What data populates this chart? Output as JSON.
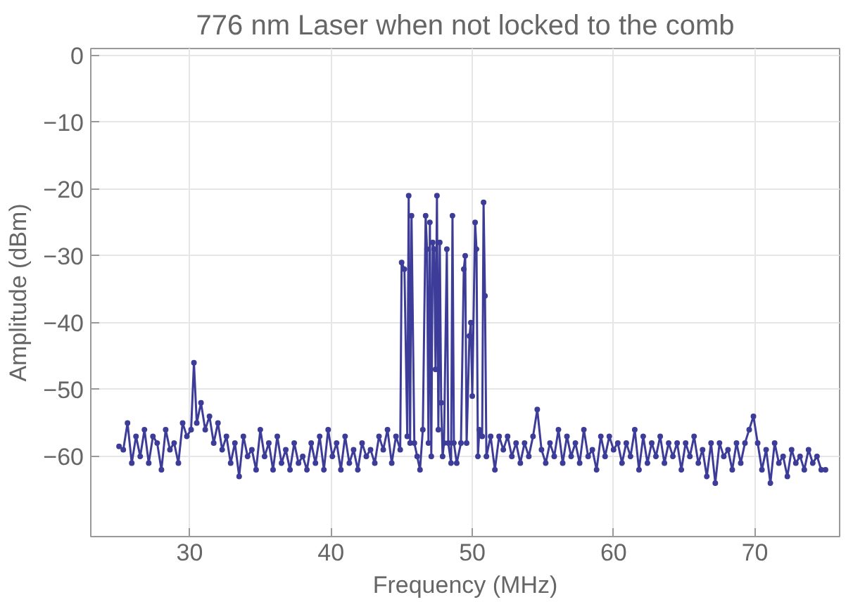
{
  "chart_data": {
    "type": "line",
    "title": "776 nm Laser when not locked to the comb",
    "xlabel": "Frequency (MHz)",
    "ylabel": "Amplitude (dBm)",
    "xlim": [
      23,
      76
    ],
    "ylim": [
      -72,
      1
    ],
    "xticks": [
      30,
      40,
      50,
      60,
      70
    ],
    "yticks": [
      0,
      {
        "value": -10,
        "label": "−10"
      },
      {
        "value": -20,
        "label": "−20"
      },
      {
        "value": -30,
        "label": "−30"
      },
      {
        "value": -40,
        "label": "−40"
      },
      {
        "value": -50,
        "label": "−50"
      },
      {
        "value": -60,
        "label": "−60"
      }
    ],
    "grid": true,
    "marker": "circle",
    "line_style": "solid",
    "series": [
      {
        "color": "#3d3d99",
        "x": [
          25.0,
          25.3,
          25.6,
          25.9,
          26.2,
          26.5,
          26.8,
          27.1,
          27.4,
          27.7,
          28.0,
          28.3,
          28.6,
          28.9,
          29.2,
          29.5,
          29.8,
          30.1,
          30.3,
          30.5,
          30.8,
          31.1,
          31.4,
          31.7,
          32.0,
          32.3,
          32.6,
          32.9,
          33.2,
          33.5,
          33.8,
          34.1,
          34.4,
          34.7,
          35.0,
          35.3,
          35.6,
          35.9,
          36.2,
          36.5,
          36.8,
          37.1,
          37.4,
          37.7,
          38.0,
          38.3,
          38.6,
          38.9,
          39.2,
          39.5,
          39.8,
          40.1,
          40.4,
          40.7,
          41.0,
          41.3,
          41.6,
          41.9,
          42.2,
          42.5,
          42.8,
          43.1,
          43.4,
          43.7,
          44.0,
          44.3,
          44.6,
          44.9,
          45.0,
          45.2,
          45.4,
          45.5,
          45.6,
          45.7,
          45.9,
          46.1,
          46.3,
          46.5,
          46.7,
          46.8,
          46.9,
          47.0,
          47.1,
          47.2,
          47.3,
          47.4,
          47.5,
          47.6,
          47.7,
          47.8,
          47.9,
          48.0,
          48.2,
          48.3,
          48.5,
          48.6,
          48.7,
          48.9,
          49.2,
          49.4,
          49.5,
          49.6,
          49.8,
          49.9,
          50.0,
          50.2,
          50.3,
          50.4,
          50.5,
          50.7,
          50.8,
          50.9,
          51.0,
          51.3,
          51.6,
          51.9,
          52.2,
          52.5,
          52.8,
          53.1,
          53.4,
          53.7,
          54.0,
          54.3,
          54.6,
          54.9,
          55.2,
          55.5,
          55.8,
          56.1,
          56.4,
          56.7,
          57.0,
          57.3,
          57.6,
          57.9,
          58.2,
          58.5,
          58.8,
          59.1,
          59.4,
          59.7,
          60.0,
          60.3,
          60.6,
          60.9,
          61.2,
          61.5,
          61.8,
          62.1,
          62.4,
          62.7,
          63.0,
          63.3,
          63.6,
          63.9,
          64.2,
          64.5,
          64.8,
          65.1,
          65.4,
          65.7,
          66.0,
          66.3,
          66.6,
          66.9,
          67.2,
          67.5,
          67.8,
          68.1,
          68.4,
          68.7,
          69.0,
          69.3,
          69.6,
          69.9,
          70.2,
          70.5,
          70.8,
          71.1,
          71.4,
          71.7,
          72.0,
          72.3,
          72.6,
          72.9,
          73.2,
          73.5,
          73.8,
          74.1,
          74.4,
          74.7,
          75.0
        ],
        "values": [
          -58.5,
          -59,
          -55,
          -61,
          -57,
          -60,
          -56,
          -61,
          -57,
          -58,
          -62,
          -56,
          -59,
          -58,
          -61,
          -55,
          -57,
          -56,
          -46,
          -55,
          -52,
          -56,
          -54,
          -58,
          -55,
          -59,
          -57,
          -61,
          -58,
          -63,
          -57,
          -60,
          -59,
          -62,
          -56,
          -60,
          -58,
          -62,
          -57,
          -61,
          -59,
          -62,
          -58,
          -61,
          -60,
          -62,
          -58,
          -61,
          -57,
          -62,
          -56,
          -60,
          -58,
          -62,
          -57,
          -61,
          -59,
          -62,
          -58,
          -60,
          -59,
          -61,
          -57,
          -59,
          -56,
          -61,
          -57,
          -59,
          -31,
          -32,
          -57,
          -21,
          -58,
          -24,
          -58,
          -60,
          -62,
          -56,
          -24,
          -29,
          -58,
          -25,
          -60,
          -28,
          -29,
          -47,
          -21,
          -56,
          -28,
          -52,
          -60,
          -58,
          -29,
          -58,
          -61,
          -24,
          -58,
          -61,
          -58,
          -32,
          -30,
          -58,
          -42,
          -40,
          -51,
          -25,
          -29,
          -60,
          -56,
          -57,
          -22,
          -36,
          -60,
          -57,
          -62,
          -57,
          -59,
          -57,
          -60,
          -58,
          -61,
          -58,
          -60,
          -57,
          -53,
          -59,
          -61,
          -58,
          -60,
          -56,
          -61,
          -57,
          -60,
          -58,
          -61,
          -56,
          -60,
          -59,
          -62,
          -57,
          -60,
          -57,
          -59,
          -58,
          -61,
          -58,
          -60,
          -56,
          -62,
          -57,
          -61,
          -58,
          -60,
          -57,
          -61,
          -58,
          -60,
          -58,
          -62,
          -58,
          -60,
          -57,
          -61,
          -59,
          -63,
          -58,
          -64,
          -58,
          -60,
          -59,
          -62,
          -58,
          -61,
          -58,
          -56,
          -54,
          -58,
          -62,
          -59,
          -64,
          -58,
          -61,
          -60,
          -63,
          -59,
          -61,
          -60,
          -62,
          -59,
          -61,
          -60,
          -62,
          -62
        ]
      }
    ]
  }
}
